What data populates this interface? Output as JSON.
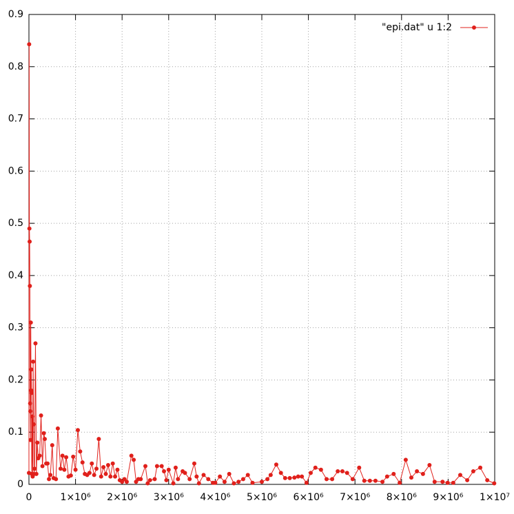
{
  "chart_data": {
    "type": "line",
    "x": [
      0,
      5000,
      10000,
      15000,
      20000,
      25000,
      30000,
      35000,
      40000,
      45000,
      50000,
      55000,
      60000,
      70000,
      80000,
      90000,
      100000,
      110000,
      120000,
      140000,
      160000,
      180000,
      200000,
      230000,
      260000,
      290000,
      320000,
      340000,
      370000,
      400000,
      430000,
      460000,
      500000,
      530000,
      580000,
      620000,
      680000,
      720000,
      760000,
      800000,
      850000,
      900000,
      950000,
      1000000,
      1050000,
      1100000,
      1150000,
      1200000,
      1250000,
      1300000,
      1350000,
      1400000,
      1450000,
      1500000,
      1550000,
      1600000,
      1650000,
      1700000,
      1750000,
      1800000,
      1850000,
      1900000,
      1950000,
      2000000,
      2050000,
      2100000,
      2200000,
      2250000,
      2300000,
      2350000,
      2400000,
      2500000,
      2550000,
      2600000,
      2700000,
      2750000,
      2850000,
      2900000,
      2950000,
      3000000,
      3100000,
      3150000,
      3200000,
      3300000,
      3350000,
      3450000,
      3550000,
      3600000,
      3650000,
      3750000,
      3850000,
      3950000,
      4000000,
      4100000,
      4200000,
      4300000,
      4400000,
      4500000,
      4600000,
      4700000,
      4800000,
      5000000,
      5120000,
      5190000,
      5310000,
      5410000,
      5500000,
      5600000,
      5700000,
      5780000,
      5860000,
      5960000,
      6050000,
      6150000,
      6270000,
      6390000,
      6510000,
      6630000,
      6730000,
      6830000,
      6950000,
      7090000,
      7200000,
      7320000,
      7440000,
      7590000,
      7690000,
      7830000,
      7960000,
      8090000,
      8210000,
      8330000,
      8460000,
      8600000,
      8710000,
      8880000,
      8990000,
      9110000,
      9260000,
      9410000,
      9540000,
      9690000,
      9840000,
      9990000
    ],
    "series": [
      {
        "name": "\"epi.dat\" u 1:2",
        "color": "#e0201b",
        "values": [
          0.022,
          0.843,
          0.49,
          0.465,
          0.38,
          0.155,
          0.14,
          0.085,
          0.31,
          0.18,
          0.22,
          0.175,
          0.02,
          0.13,
          0.015,
          0.235,
          0.115,
          0.02,
          0.03,
          0.27,
          0.02,
          0.08,
          0.05,
          0.055,
          0.132,
          0.035,
          0.098,
          0.087,
          0.04,
          0.04,
          0.01,
          0.018,
          0.075,
          0.012,
          0.01,
          0.107,
          0.03,
          0.055,
          0.028,
          0.052,
          0.015,
          0.017,
          0.053,
          0.028,
          0.104,
          0.063,
          0.042,
          0.02,
          0.018,
          0.022,
          0.04,
          0.018,
          0.03,
          0.087,
          0.015,
          0.033,
          0.02,
          0.037,
          0.015,
          0.04,
          0.015,
          0.028,
          0.008,
          0.005,
          0.01,
          0.005,
          0.055,
          0.047,
          0.005,
          0.01,
          0.01,
          0.035,
          0.002,
          0.008,
          0.01,
          0.035,
          0.035,
          0.025,
          0.008,
          0.028,
          0.002,
          0.032,
          0.01,
          0.025,
          0.022,
          0.01,
          0.04,
          0.015,
          0.002,
          0.018,
          0.01,
          0.003,
          0.003,
          0.015,
          0.005,
          0.02,
          0.002,
          0.005,
          0.01,
          0.018,
          0.003,
          0.005,
          0.01,
          0.018,
          0.038,
          0.022,
          0.012,
          0.012,
          0.013,
          0.015,
          0.015,
          0.003,
          0.022,
          0.032,
          0.028,
          0.01,
          0.01,
          0.025,
          0.025,
          0.022,
          0.01,
          0.032,
          0.007,
          0.007,
          0.007,
          0.005,
          0.015,
          0.02,
          0.003,
          0.047,
          0.013,
          0.025,
          0.02,
          0.037,
          0.005,
          0.005,
          0.003,
          0.003,
          0.018,
          0.008,
          0.025,
          0.032,
          0.008,
          0.002
        ]
      }
    ],
    "xlim": [
      0,
      10000000
    ],
    "xticks": [
      0,
      {
        "value": 1000000,
        "label": "1×10⁶"
      },
      {
        "value": 2000000,
        "label": "2×10⁶"
      },
      {
        "value": 3000000,
        "label": "3×10⁶"
      },
      {
        "value": 4000000,
        "label": "4×10⁶"
      },
      {
        "value": 5000000,
        "label": "5×10⁶"
      },
      {
        "value": 6000000,
        "label": "6×10⁶"
      },
      {
        "value": 7000000,
        "label": "7×10⁶"
      },
      {
        "value": 8000000,
        "label": "8×10⁶"
      },
      {
        "value": 9000000,
        "label": "9×10⁶"
      },
      {
        "value": 10000000,
        "label": "1×10⁷"
      }
    ],
    "ylim": [
      0,
      0.9
    ],
    "yticks": [
      0,
      0.1,
      0.2,
      0.3,
      0.4,
      0.5,
      0.6,
      0.7,
      0.8,
      0.9
    ],
    "grid": true,
    "legend": "top-right"
  }
}
